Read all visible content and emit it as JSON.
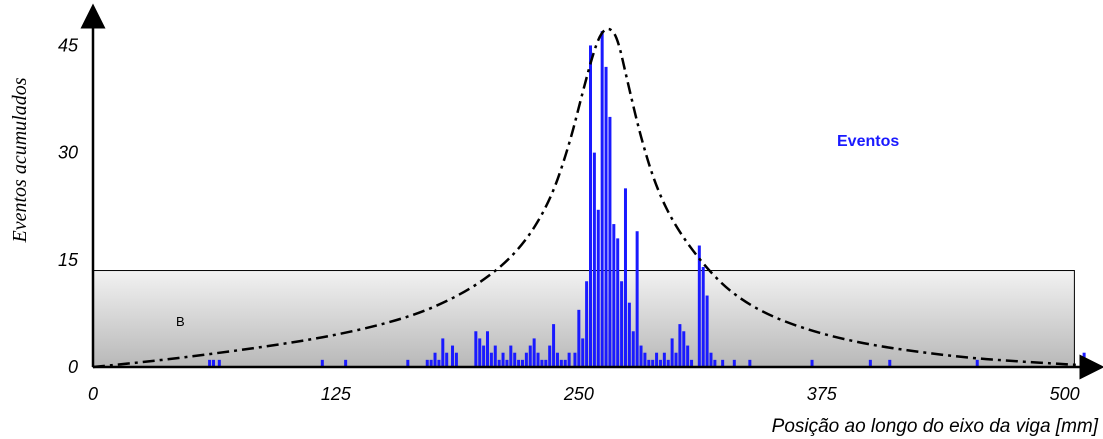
{
  "chart_data": {
    "type": "bar",
    "title": "",
    "xlabel": "Posição ao longo do eixo da viga [mm]",
    "ylabel": "Eventos acumulados",
    "xlim": [
      0,
      512
    ],
    "ylim": [
      0,
      48
    ],
    "x_ticks": [
      "0",
      "125",
      "250",
      "375",
      "500"
    ],
    "x_tick_values": [
      0,
      125,
      250,
      375,
      500
    ],
    "y_ticks": [
      "0",
      "15",
      "30",
      "45"
    ],
    "y_tick_values": [
      0,
      15,
      30,
      45
    ],
    "grid": false,
    "legend_position": "top-right",
    "series": [
      {
        "name": "Eventos",
        "color": "#1a1aff",
        "x": [
          60,
          62,
          65,
          118,
          130,
          162,
          172,
          174,
          176,
          178,
          180,
          182,
          185,
          187,
          197,
          199,
          201,
          203,
          205,
          207,
          209,
          211,
          213,
          215,
          217,
          219,
          221,
          223,
          225,
          227,
          229,
          231,
          233,
          235,
          237,
          239,
          241,
          243,
          245,
          248,
          250,
          252,
          254,
          256,
          258,
          260,
          262,
          264,
          266,
          268,
          270,
          272,
          274,
          276,
          278,
          280,
          282,
          284,
          286,
          288,
          290,
          292,
          294,
          296,
          298,
          300,
          302,
          304,
          306,
          308,
          312,
          314,
          316,
          318,
          320,
          324,
          330,
          338,
          370,
          400,
          410,
          455,
          510
        ],
        "values": [
          1,
          1,
          1,
          1,
          1,
          1,
          1,
          1,
          2,
          1,
          4,
          2,
          3,
          2,
          5,
          4,
          3,
          5,
          2,
          3,
          1,
          2,
          1,
          3,
          2,
          1,
          1,
          2,
          3,
          4,
          2,
          1,
          1,
          3,
          6,
          2,
          1,
          1,
          2,
          2,
          8,
          4,
          12,
          45,
          30,
          22,
          47,
          42,
          35,
          20,
          18,
          12,
          25,
          9,
          5,
          19,
          3,
          2,
          1,
          1,
          2,
          1,
          2,
          1,
          4,
          2,
          6,
          5,
          3,
          1,
          17,
          14,
          10,
          2,
          1,
          1,
          1,
          1,
          1,
          1,
          1,
          1,
          2
        ]
      }
    ],
    "envelope": {
      "style": "dash-dot",
      "x": [
        0,
        30,
        60,
        90,
        120,
        150,
        175,
        200,
        220,
        235,
        245,
        252,
        258,
        262,
        266,
        270,
        275,
        282,
        290,
        300,
        315,
        330,
        350,
        375,
        400,
        425,
        450,
        475,
        500,
        512
      ],
      "values": [
        0,
        0.8,
        1.8,
        2.9,
        4.2,
        6.0,
        8.2,
        11.8,
        16.5,
        23.0,
        31.0,
        38.5,
        44.5,
        47.0,
        47.5,
        46.0,
        40.0,
        32.0,
        25.0,
        19.5,
        14.0,
        10.0,
        6.9,
        4.6,
        3.1,
        2.1,
        1.3,
        0.8,
        0.4,
        0.2
      ]
    },
    "region": {
      "label": "B",
      "x_range": [
        0,
        505
      ],
      "y_range": [
        0,
        13.5
      ]
    }
  }
}
